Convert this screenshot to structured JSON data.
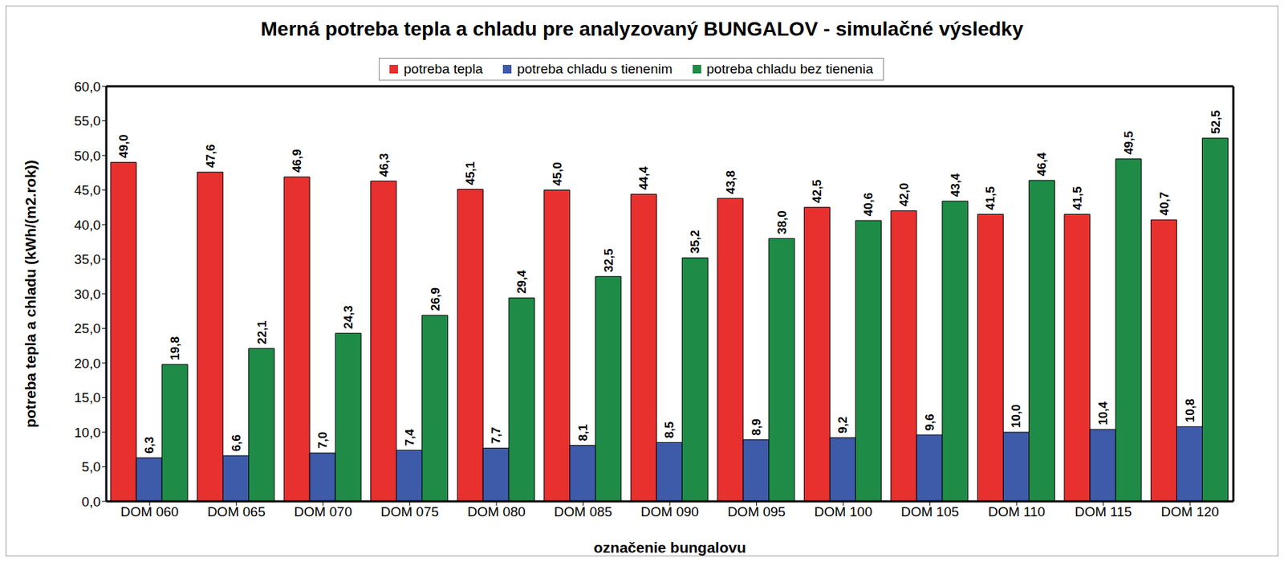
{
  "chart_data": {
    "type": "bar",
    "title": "Merná potreba tepla a chladu pre analyzovaný BUNGALOV - simulačné výsledky",
    "x_label": "označenie bungalovu",
    "y_label": "potreba tepla a chladu (kWh/(m2.rok))",
    "categories": [
      "DOM 060",
      "DOM 065",
      "DOM 070",
      "DOM 075",
      "DOM 080",
      "DOM 085",
      "DOM 090",
      "DOM 095",
      "DOM 100",
      "DOM 105",
      "DOM 110",
      "DOM 115",
      "DOM 120"
    ],
    "series": [
      {
        "name": "potreba tepla",
        "color": "#e8312f",
        "values": [
          49.0,
          47.6,
          46.9,
          46.3,
          45.1,
          45.0,
          44.4,
          43.8,
          42.5,
          42.0,
          41.5,
          41.5,
          40.7
        ],
        "value_labels": [
          "49,0",
          "47,6",
          "46,9",
          "46,3",
          "45,1",
          "45,0",
          "44,4",
          "43,8",
          "42,5",
          "42,0",
          "41,5",
          "41,5",
          "40,7"
        ]
      },
      {
        "name": "potreba chladu s tienenim",
        "color": "#3e5ba9",
        "values": [
          6.3,
          6.6,
          7.0,
          7.4,
          7.7,
          8.1,
          8.5,
          8.9,
          9.2,
          9.6,
          10.0,
          10.4,
          10.8
        ],
        "value_labels": [
          "6,3",
          "6,6",
          "7,0",
          "7,4",
          "7,7",
          "8,1",
          "8,5",
          "8,9",
          "9,2",
          "9,6",
          "10,0",
          "10,4",
          "10,8"
        ]
      },
      {
        "name": "potreba chladu bez tienenia",
        "color": "#1e8c47",
        "values": [
          19.8,
          22.1,
          24.3,
          26.9,
          29.4,
          32.5,
          35.2,
          38.0,
          40.6,
          43.4,
          46.4,
          49.5,
          52.5
        ],
        "value_labels": [
          "19,8",
          "22,1",
          "24,3",
          "26,9",
          "29,4",
          "32,5",
          "35,2",
          "38,0",
          "40,6",
          "43,4",
          "46,4",
          "49,5",
          "52,5"
        ]
      }
    ],
    "ylim": [
      0,
      60
    ],
    "yticks": [
      {
        "value": 0,
        "label": "0,0"
      },
      {
        "value": 5,
        "label": "5,0"
      },
      {
        "value": 10,
        "label": "10,0"
      },
      {
        "value": 15,
        "label": "15,0"
      },
      {
        "value": 20,
        "label": "20,0"
      },
      {
        "value": 25,
        "label": "25,0"
      },
      {
        "value": 30,
        "label": "30,0"
      },
      {
        "value": 35,
        "label": "35,0"
      },
      {
        "value": 40,
        "label": "40,0"
      },
      {
        "value": 45,
        "label": "45,0"
      },
      {
        "value": 50,
        "label": "50,0"
      },
      {
        "value": 55,
        "label": "55,0"
      },
      {
        "value": 60,
        "label": "60,0"
      }
    ],
    "grid": false,
    "legend": "top",
    "data_labels": true
  }
}
